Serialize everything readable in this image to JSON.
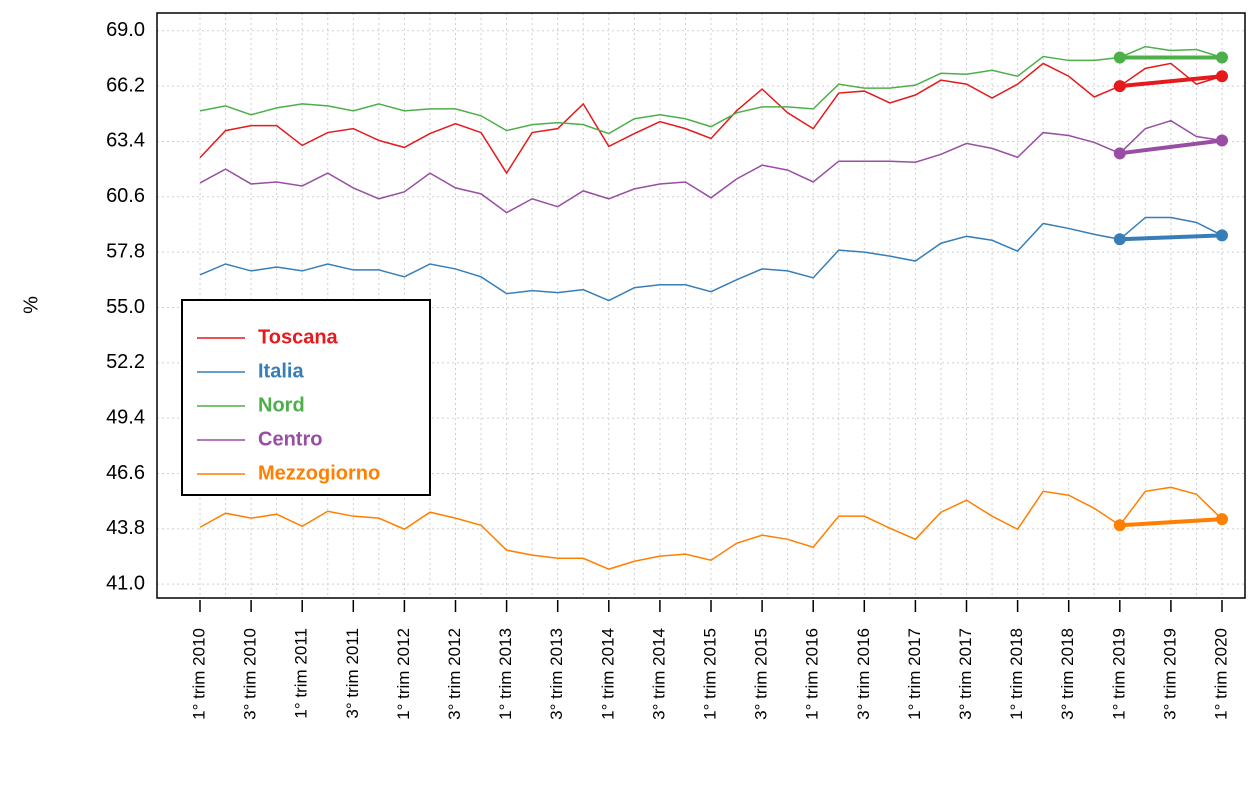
{
  "chart_data": {
    "type": "line",
    "y_label": "%",
    "categories": [
      "1° trim 2010",
      null,
      "3° trim 2010",
      null,
      "1° trim 2011",
      null,
      "3° trim 2011",
      null,
      "1° trim 2012",
      null,
      "3° trim 2012",
      null,
      "1° trim 2013",
      null,
      "3° trim 2013",
      null,
      "1° trim 2014",
      null,
      "3° trim 2014",
      null,
      "1° trim 2015",
      null,
      "3° trim 2015",
      null,
      "1° trim 2016",
      null,
      "3° trim 2016",
      null,
      "1° trim 2017",
      null,
      "3° trim 2017",
      null,
      "1° trim 2018",
      null,
      "3° trim 2018",
      null,
      "1° trim 2019",
      null,
      "3° trim 2019",
      null,
      "1° trim 2020"
    ],
    "series": [
      {
        "name": "Toscana",
        "color": "#e41a1c",
        "values": [
          62.58,
          63.95,
          64.2,
          64.2,
          63.2,
          63.85,
          64.05,
          63.45,
          63.1,
          63.8,
          64.3,
          63.85,
          61.8,
          63.85,
          64.05,
          65.3,
          63.15,
          63.8,
          64.4,
          64.05,
          63.55,
          64.95,
          66.05,
          64.85,
          64.05,
          65.85,
          65.95,
          65.35,
          65.75,
          66.5,
          66.3,
          65.6,
          66.3,
          67.35,
          66.7,
          65.65,
          66.2,
          67.1,
          67.35,
          66.3,
          66.7
        ]
      },
      {
        "name": "Italia",
        "color": "#377eb8",
        "values": [
          56.65,
          57.2,
          56.85,
          57.05,
          56.85,
          57.2,
          56.9,
          56.9,
          56.55,
          57.2,
          56.95,
          56.55,
          55.7,
          55.85,
          55.75,
          55.9,
          55.35,
          56.0,
          56.15,
          56.15,
          55.8,
          56.4,
          56.95,
          56.85,
          56.5,
          57.9,
          57.8,
          57.6,
          57.35,
          58.25,
          58.6,
          58.4,
          57.85,
          59.25,
          59.0,
          58.7,
          58.45,
          59.55,
          59.55,
          59.3,
          58.65
        ]
      },
      {
        "name": "Nord",
        "color": "#4daf4a",
        "values": [
          64.95,
          65.2,
          64.75,
          65.1,
          65.3,
          65.2,
          64.95,
          65.3,
          64.95,
          65.05,
          65.05,
          64.7,
          63.95,
          64.25,
          64.35,
          64.25,
          63.8,
          64.55,
          64.75,
          64.55,
          64.15,
          64.85,
          65.15,
          65.15,
          65.05,
          66.3,
          66.1,
          66.1,
          66.25,
          66.85,
          66.8,
          67.0,
          66.7,
          67.7,
          67.5,
          67.5,
          67.65,
          68.2,
          68.0,
          68.05,
          67.65
        ]
      },
      {
        "name": "Centro",
        "color": "#984ea3",
        "values": [
          61.3,
          62.0,
          61.25,
          61.35,
          61.15,
          61.8,
          61.05,
          60.5,
          60.85,
          61.8,
          61.05,
          60.75,
          59.8,
          60.5,
          60.1,
          60.9,
          60.5,
          61.0,
          61.25,
          61.35,
          60.55,
          61.5,
          62.2,
          61.95,
          61.35,
          62.4,
          62.4,
          62.4,
          62.35,
          62.75,
          63.3,
          63.05,
          62.6,
          63.85,
          63.7,
          63.35,
          62.8,
          64.05,
          64.45,
          63.65,
          63.45
        ]
      },
      {
        "name": "Mezzogiorno",
        "color": "#ff7f00",
        "values": [
          43.88,
          44.59,
          44.34,
          44.54,
          43.93,
          44.69,
          44.44,
          44.34,
          43.78,
          44.64,
          44.34,
          43.98,
          42.72,
          42.47,
          42.31,
          42.31,
          41.76,
          42.16,
          42.42,
          42.52,
          42.21,
          43.07,
          43.48,
          43.27,
          42.87,
          44.44,
          44.44,
          43.83,
          43.27,
          44.64,
          45.25,
          44.44,
          43.78,
          45.7,
          45.5,
          44.84,
          43.98,
          45.7,
          45.9,
          45.55,
          44.29
        ]
      }
    ],
    "highlight_indices": [
      36,
      40
    ],
    "ylim": [
      40.3,
      69.9
    ],
    "yticks": [
      {
        "value": 41,
        "label": "41.0"
      },
      43.8,
      46.6,
      49.4,
      52.2,
      {
        "value": 55,
        "label": "55.0"
      },
      57.8,
      60.6,
      63.4,
      66.2,
      {
        "value": 69,
        "label": "69.0"
      }
    ],
    "grid": true,
    "legend_position": "left"
  }
}
